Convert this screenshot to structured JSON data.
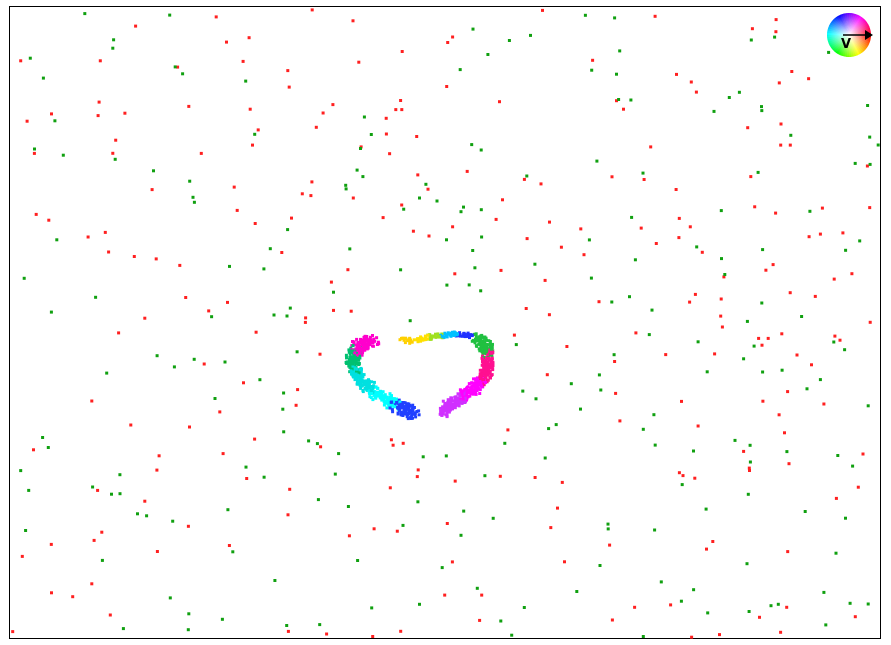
{
  "colors": {
    "background": "#ffffff",
    "frame": "#000000",
    "red_dot": "#ff2020",
    "green_dot": "#10a010"
  },
  "legend": {
    "icon": "hsv-color-wheel-icon",
    "label": "V"
  },
  "scatter": {
    "red_count": 260,
    "green_count": 230,
    "seed_red": 1337,
    "seed_green": 4242
  },
  "shape": {
    "icon": "rainbow-heart-icon",
    "hues_left": [
      "#ff00cc",
      "#00c070",
      "#00e0e0",
      "#00ffff",
      "#2040ff"
    ],
    "hues_right": [
      "#20c040",
      "#ff1090",
      "#ff00ff",
      "#d030ff"
    ],
    "hues_top": [
      "#ffd000",
      "#ffe000",
      "#a0e020",
      "#00c0ff",
      "#2030ff"
    ]
  }
}
